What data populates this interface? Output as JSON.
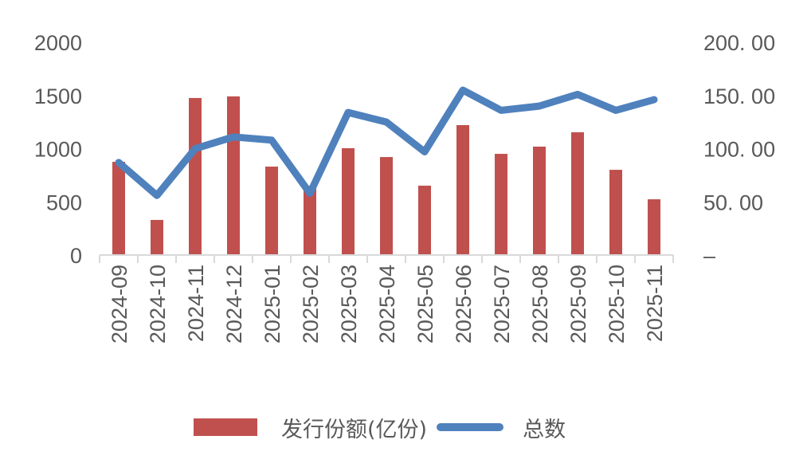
{
  "chart_data": {
    "type": "bar+line",
    "title": "",
    "categories": [
      "2024-09",
      "2024-10",
      "2024-11",
      "2024-12",
      "2025-01",
      "2025-02",
      "2025-03",
      "2025-04",
      "2025-05",
      "2025-06",
      "2025-07",
      "2025-08",
      "2025-09",
      "2025-10",
      "2025-11"
    ],
    "series": [
      {
        "name": "发行份额(亿份)",
        "type": "bar",
        "axis": "left",
        "color": "#c0504d",
        "values": [
          876,
          330,
          1476,
          1491,
          831,
          652,
          1004,
          921,
          652,
          1221,
          951,
          1019,
          1154,
          801,
          524
        ]
      },
      {
        "name": "总数",
        "type": "line",
        "axis": "right",
        "color": "#4f81bd",
        "values": [
          87,
          56,
          100,
          111,
          108,
          58,
          134,
          125,
          97,
          155,
          136,
          140,
          151,
          136,
          146
        ]
      }
    ],
    "y_left": {
      "ylim": [
        0,
        2000
      ],
      "ticks": [
        "0",
        "500",
        "1000",
        "1500",
        "2000"
      ]
    },
    "y_right": {
      "ylim": [
        0,
        200
      ],
      "ticks": [
        "–",
        "50. 00",
        "100. 00",
        "150. 00",
        "200. 00"
      ]
    },
    "xlabel": "",
    "ylabel": "",
    "grid": false,
    "legend_position": "bottom"
  },
  "legend": {
    "bar_label": "发行份额(亿份)",
    "line_label": "总数"
  }
}
